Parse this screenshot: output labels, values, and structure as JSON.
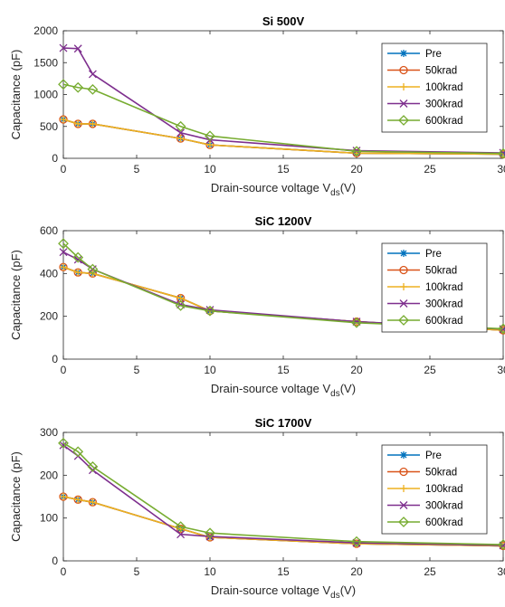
{
  "chart_data": [
    {
      "type": "line",
      "title": "Si 500V",
      "xlabel": "Drain-source voltage V",
      "xlabel_sub": "ds",
      "xlabel_unit": "(V)",
      "ylabel": "Capacitance (pF)",
      "xlim": [
        0,
        30
      ],
      "ylim": [
        0,
        2000
      ],
      "xticks": [
        0,
        5,
        10,
        15,
        20,
        25,
        30
      ],
      "yticks": [
        0,
        500,
        1000,
        1500,
        2000
      ],
      "legend_position": "right",
      "x": [
        0,
        1,
        2,
        8,
        10,
        20,
        30
      ],
      "series": [
        {
          "name": "Pre",
          "values": [
            610,
            540,
            540,
            310,
            210,
            80,
            65
          ],
          "color": "#0072BD",
          "marker": "asterisk"
        },
        {
          "name": "50krad",
          "values": [
            610,
            540,
            540,
            310,
            210,
            80,
            65
          ],
          "color": "#D95319",
          "marker": "circle"
        },
        {
          "name": "100krad",
          "values": [
            610,
            540,
            540,
            310,
            210,
            80,
            65
          ],
          "color": "#EDB120",
          "marker": "plus"
        },
        {
          "name": "300krad",
          "values": [
            1730,
            1720,
            1320,
            400,
            290,
            120,
            85
          ],
          "color": "#7E2F8E",
          "marker": "x"
        },
        {
          "name": "600krad",
          "values": [
            1160,
            1110,
            1080,
            500,
            350,
            110,
            75
          ],
          "color": "#77AC30",
          "marker": "diamond"
        }
      ]
    },
    {
      "type": "line",
      "title": "SiC 1200V",
      "xlabel": "Drain-source voltage V",
      "xlabel_sub": "ds",
      "xlabel_unit": "(V)",
      "ylabel": "Capacitance (pF)",
      "xlim": [
        0,
        30
      ],
      "ylim": [
        0,
        600
      ],
      "xticks": [
        0,
        5,
        10,
        15,
        20,
        25,
        30
      ],
      "yticks": [
        0,
        200,
        400,
        600
      ],
      "legend_position": "right",
      "x": [
        0,
        1,
        2,
        8,
        10,
        20,
        30
      ],
      "series": [
        {
          "name": "Pre",
          "values": [
            430,
            405,
            400,
            285,
            225,
            175,
            135
          ],
          "color": "#0072BD",
          "marker": "asterisk"
        },
        {
          "name": "50krad",
          "values": [
            430,
            405,
            400,
            285,
            225,
            175,
            135
          ],
          "color": "#D95319",
          "marker": "circle"
        },
        {
          "name": "100krad",
          "values": [
            430,
            405,
            400,
            285,
            225,
            175,
            135
          ],
          "color": "#EDB120",
          "marker": "plus"
        },
        {
          "name": "300krad",
          "values": [
            500,
            465,
            420,
            255,
            230,
            175,
            140
          ],
          "color": "#7E2F8E",
          "marker": "x"
        },
        {
          "name": "600krad",
          "values": [
            540,
            475,
            420,
            250,
            225,
            170,
            142
          ],
          "color": "#77AC30",
          "marker": "diamond"
        }
      ]
    },
    {
      "type": "line",
      "title": "SiC 1700V",
      "xlabel": "Drain-source voltage V",
      "xlabel_sub": "ds",
      "xlabel_unit": "(V)",
      "ylabel": "Capacitance (pF)",
      "xlim": [
        0,
        30
      ],
      "ylim": [
        0,
        300
      ],
      "xticks": [
        0,
        5,
        10,
        15,
        20,
        25,
        30
      ],
      "yticks": [
        0,
        100,
        200,
        300
      ],
      "legend_position": "right",
      "x": [
        0,
        1,
        2,
        8,
        10,
        20,
        30
      ],
      "series": [
        {
          "name": "Pre",
          "values": [
            150,
            143,
            137,
            75,
            55,
            40,
            35
          ],
          "color": "#0072BD",
          "marker": "asterisk"
        },
        {
          "name": "50krad",
          "values": [
            150,
            143,
            137,
            75,
            55,
            40,
            35
          ],
          "color": "#D95319",
          "marker": "circle"
        },
        {
          "name": "100krad",
          "values": [
            150,
            143,
            137,
            75,
            55,
            40,
            35
          ],
          "color": "#EDB120",
          "marker": "plus"
        },
        {
          "name": "300krad",
          "values": [
            270,
            245,
            212,
            62,
            57,
            42,
            36
          ],
          "color": "#7E2F8E",
          "marker": "x"
        },
        {
          "name": "600krad",
          "values": [
            275,
            255,
            220,
            80,
            65,
            45,
            38
          ],
          "color": "#77AC30",
          "marker": "diamond"
        }
      ]
    }
  ]
}
